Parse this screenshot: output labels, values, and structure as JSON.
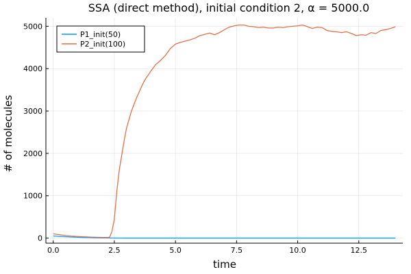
{
  "chart_data": {
    "type": "line",
    "title": "SSA (direct method), initial condition 2, α = 5000.0",
    "xlabel": "time",
    "ylabel": "# of molecules",
    "xlim": [
      -0.3,
      14.3
    ],
    "ylim": [
      -120,
      5200
    ],
    "x_ticks": [
      0.0,
      2.5,
      5.0,
      7.5,
      10.0,
      12.5
    ],
    "x_tick_labels": [
      "0.0",
      "2.5",
      "5.0",
      "7.5",
      "10.0",
      "12.5"
    ],
    "y_ticks": [
      0,
      1000,
      2000,
      3000,
      4000,
      5000
    ],
    "y_tick_labels": [
      "0",
      "1000",
      "2000",
      "3000",
      "4000",
      "5000"
    ],
    "grid": true,
    "legend_position": "top-left",
    "series": [
      {
        "name": "P1_init(50)",
        "color": "#009AFA",
        "x": [
          0.0,
          0.25,
          0.5,
          0.75,
          1.0,
          1.25,
          1.5,
          1.75,
          2.0,
          2.5,
          3.0,
          14.0
        ],
        "y": [
          50,
          40,
          32,
          25,
          19,
          14,
          10,
          6,
          3,
          1,
          0,
          0
        ]
      },
      {
        "name": "P2_init(100)",
        "color": "#E36F47",
        "x": [
          0.0,
          0.25,
          0.5,
          0.75,
          1.0,
          1.25,
          1.5,
          1.75,
          2.0,
          2.2,
          2.3,
          2.4,
          2.5,
          2.6,
          2.7,
          2.8,
          2.9,
          3.0,
          3.1,
          3.2,
          3.3,
          3.4,
          3.5,
          3.6,
          3.7,
          3.8,
          3.9,
          4.0,
          4.2,
          4.4,
          4.6,
          4.8,
          5.0,
          5.2,
          5.4,
          5.6,
          5.8,
          6.0,
          6.2,
          6.4,
          6.6,
          6.8,
          7.0,
          7.2,
          7.4,
          7.6,
          7.8,
          8.0,
          8.2,
          8.4,
          8.6,
          8.8,
          9.0,
          9.2,
          9.4,
          9.6,
          9.8,
          10.0,
          10.2,
          10.4,
          10.6,
          10.8,
          11.0,
          11.2,
          11.4,
          11.6,
          11.8,
          12.0,
          12.2,
          12.4,
          12.6,
          12.8,
          13.0,
          13.2,
          13.4,
          13.6,
          13.8,
          14.0
        ],
        "y": [
          100,
          80,
          62,
          48,
          38,
          30,
          24,
          20,
          16,
          14,
          15,
          150,
          450,
          1100,
          1600,
          1950,
          2300,
          2600,
          2800,
          3000,
          3150,
          3300,
          3430,
          3560,
          3680,
          3780,
          3860,
          3950,
          4100,
          4200,
          4320,
          4480,
          4580,
          4620,
          4650,
          4680,
          4720,
          4780,
          4810,
          4840,
          4800,
          4850,
          4920,
          4980,
          5010,
          5030,
          5030,
          5000,
          4990,
          4970,
          4980,
          4960,
          4960,
          4980,
          4970,
          4990,
          5000,
          5010,
          5030,
          4990,
          4950,
          4980,
          4970,
          4900,
          4880,
          4870,
          4850,
          4870,
          4830,
          4780,
          4800,
          4790,
          4850,
          4830,
          4900,
          4920,
          4950,
          4990
        ]
      }
    ]
  }
}
